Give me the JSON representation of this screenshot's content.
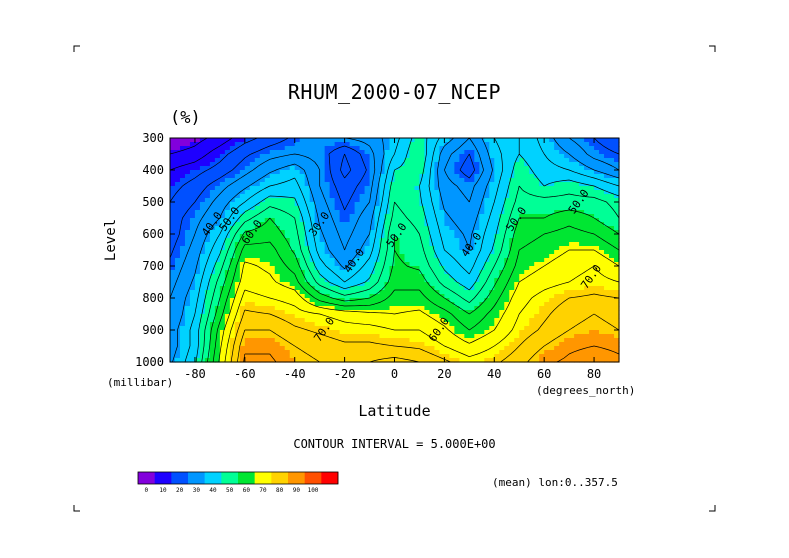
{
  "chart_data": {
    "type": "heatmap",
    "title": "RHUM_2000-07_NCEP",
    "units_label": "(%)",
    "xlabel": "Latitude",
    "ylabel": "Level",
    "x_unit": "(degrees_north)",
    "y_unit": "(millibar)",
    "xlim": [
      -90,
      90
    ],
    "ylim": [
      1000,
      300
    ],
    "x_ticks": [
      -80,
      -60,
      -40,
      -20,
      0,
      20,
      40,
      60,
      80
    ],
    "x_tick_labels": [
      "-80",
      "-60",
      "-40",
      "-20",
      "0",
      "20",
      "40",
      "60",
      "80"
    ],
    "y_ticks": [
      300,
      400,
      500,
      600,
      700,
      800,
      900,
      1000
    ],
    "y_tick_labels": [
      "300",
      "400",
      "500",
      "600",
      "700",
      "800",
      "900",
      "1000"
    ],
    "levels": [
      300,
      350,
      400,
      450,
      500,
      550,
      600,
      650,
      700,
      750,
      800,
      850,
      900,
      950,
      1000
    ],
    "latitudes": [
      -90,
      -80,
      -70,
      -60,
      -50,
      -40,
      -30,
      -20,
      -10,
      0,
      10,
      20,
      30,
      40,
      50,
      60,
      70,
      80,
      90
    ],
    "values": [
      [
        5,
        8,
        12,
        18,
        22,
        26,
        30,
        30,
        32,
        38,
        48,
        38,
        30,
        40,
        45,
        38,
        30,
        25,
        20
      ],
      [
        10,
        12,
        18,
        24,
        28,
        30,
        28,
        20,
        28,
        40,
        50,
        32,
        25,
        38,
        45,
        40,
        35,
        28,
        25
      ],
      [
        15,
        18,
        22,
        28,
        34,
        38,
        30,
        18,
        26,
        45,
        48,
        30,
        22,
        36,
        48,
        42,
        40,
        35,
        30
      ],
      [
        18,
        22,
        28,
        34,
        40,
        42,
        30,
        22,
        28,
        48,
        45,
        32,
        28,
        38,
        50,
        45,
        48,
        45,
        40
      ],
      [
        20,
        25,
        32,
        40,
        48,
        46,
        32,
        24,
        30,
        50,
        46,
        34,
        30,
        40,
        52,
        52,
        52,
        52,
        48
      ],
      [
        22,
        28,
        35,
        48,
        55,
        50,
        34,
        26,
        33,
        52,
        48,
        36,
        32,
        42,
        55,
        55,
        58,
        55,
        50
      ],
      [
        22,
        30,
        40,
        56,
        58,
        52,
        36,
        28,
        35,
        55,
        50,
        38,
        34,
        44,
        58,
        60,
        62,
        60,
        55
      ],
      [
        24,
        32,
        44,
        62,
        62,
        54,
        38,
        30,
        38,
        55,
        52,
        40,
        35,
        46,
        60,
        62,
        65,
        65,
        60
      ],
      [
        26,
        34,
        48,
        66,
        64,
        58,
        42,
        34,
        42,
        56,
        54,
        44,
        38,
        50,
        62,
        65,
        68,
        70,
        65
      ],
      [
        28,
        36,
        52,
        68,
        66,
        62,
        48,
        40,
        46,
        58,
        58,
        48,
        42,
        54,
        65,
        68,
        70,
        72,
        70
      ],
      [
        30,
        38,
        55,
        72,
        70,
        68,
        58,
        52,
        55,
        62,
        62,
        55,
        48,
        58,
        68,
        72,
        75,
        76,
        75
      ],
      [
        30,
        40,
        58,
        76,
        75,
        72,
        70,
        68,
        66,
        65,
        66,
        62,
        55,
        62,
        70,
        74,
        78,
        80,
        78
      ],
      [
        32,
        42,
        62,
        80,
        80,
        76,
        74,
        72,
        72,
        70,
        70,
        66,
        60,
        65,
        72,
        76,
        80,
        82,
        80
      ],
      [
        32,
        42,
        64,
        84,
        84,
        80,
        78,
        76,
        76,
        75,
        74,
        70,
        66,
        70,
        75,
        80,
        84,
        85,
        84
      ],
      [
        34,
        44,
        66,
        86,
        86,
        82,
        80,
        78,
        80,
        82,
        80,
        76,
        72,
        74,
        78,
        84,
        86,
        88,
        86
      ]
    ],
    "contour_labels": [
      {
        "text": "40.0",
        "lat": -72,
        "lev": 575
      },
      {
        "text": "50.0",
        "lat": -65,
        "lev": 560
      },
      {
        "text": "60.0",
        "lat": -56,
        "lev": 600
      },
      {
        "text": "30.0",
        "lat": -29,
        "lev": 575
      },
      {
        "text": "40.0",
        "lat": -15,
        "lev": 690
      },
      {
        "text": "50.0",
        "lat": 2,
        "lev": 610
      },
      {
        "text": "40.0",
        "lat": 32,
        "lev": 640
      },
      {
        "text": "50.0",
        "lat": 50,
        "lev": 560
      },
      {
        "text": "50.0",
        "lat": 75,
        "lev": 505
      },
      {
        "text": "70.0",
        "lat": -27,
        "lev": 905
      },
      {
        "text": "60.0",
        "lat": 19,
        "lev": 905
      },
      {
        "text": "70.0",
        "lat": 80,
        "lev": 740
      }
    ],
    "colorbar": {
      "colors": [
        "#8200dc",
        "#1e00ff",
        "#0050ff",
        "#0096ff",
        "#00d2ff",
        "#00ff96",
        "#00e632",
        "#ffff00",
        "#ffd200",
        "#ff9600",
        "#ff5000",
        "#ff0000"
      ],
      "tick_labels": [
        "0",
        "10",
        "20",
        "30",
        "40",
        "50",
        "60",
        "70",
        "80",
        "90",
        "100"
      ]
    },
    "contour_interval_text": "CONTOUR INTERVAL = 5.000E+00",
    "mean_text": "(mean) lon:0..357.5"
  }
}
